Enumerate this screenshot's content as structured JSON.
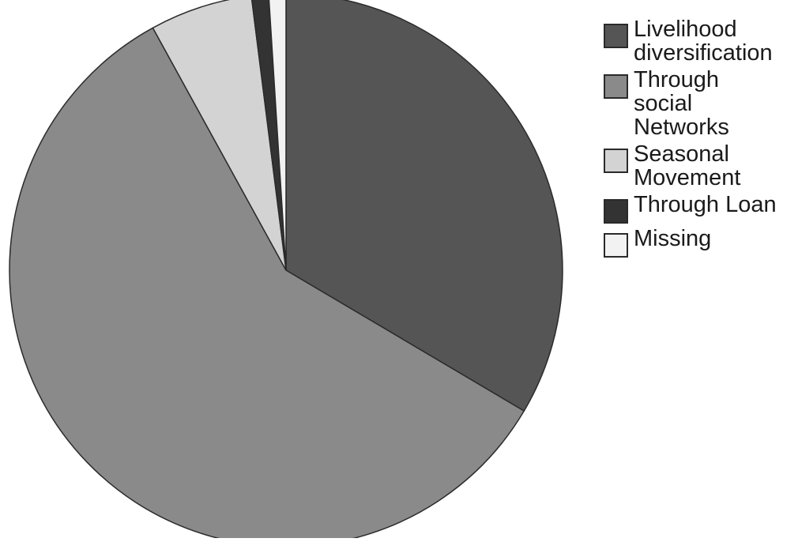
{
  "chart_data": {
    "type": "pie",
    "title": "",
    "slices": [
      {
        "label": "Livelihood\ndiversification",
        "value": 33.5,
        "color": "#555555"
      },
      {
        "label": "Through\nsocial\nNetworks",
        "value": 58.5,
        "color": "#8a8a8a"
      },
      {
        "label": "Seasonal\nMovement",
        "value": 6.0,
        "color": "#d3d3d3"
      },
      {
        "label": "Through Loan",
        "value": 1.0,
        "color": "#333333"
      },
      {
        "label": "Missing",
        "value": 1.0,
        "color": "#f2f2f2"
      }
    ],
    "start_angle_deg": 0,
    "direction": "clockwise",
    "legend_position": "right"
  }
}
